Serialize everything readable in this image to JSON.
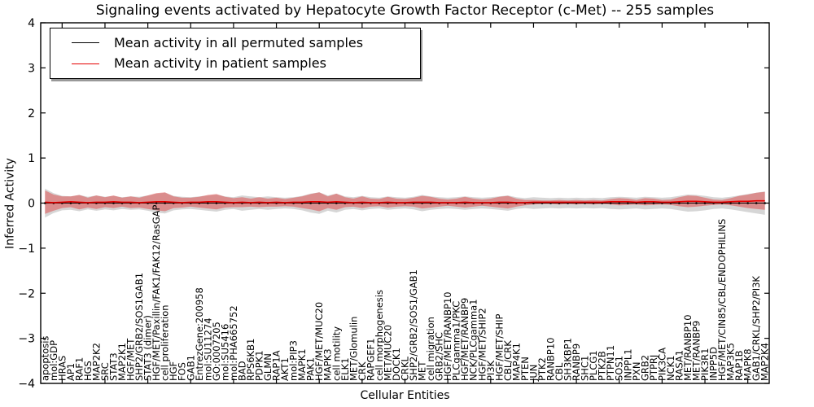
{
  "chart_data": {
    "type": "line",
    "title": "Signaling events activated by Hepatocyte Growth Factor Receptor (c-Met) -- 255 samples",
    "xlabel": "Cellular Entities",
    "ylabel": "Inferred Activity",
    "ylim": [
      -4,
      4
    ],
    "ytick_values": [
      4,
      3,
      2,
      1,
      0,
      -1,
      -2,
      -3,
      -4
    ],
    "ytick_labels": [
      "4",
      "3",
      "2",
      "1",
      "0",
      "−1",
      "−2",
      "−3",
      "−4"
    ],
    "grid": false,
    "legend_position": "upper left",
    "categories": [
      "apoptosis",
      "mol:GDP",
      "HRAS",
      "AP1",
      "RAF1",
      "HGS",
      "MAP2K2",
      "SRC",
      "STAT3",
      "MAP2K1",
      "HGF/MET",
      "SHP2/GRB2/SOS1GAB1",
      "STAT3 (dimer)",
      "HGF/MET/Paxillin/FAK1/FAK12/RasGAP",
      "cell proliferation",
      "HGF",
      "FOS",
      "GAB1",
      "EntrezGene:200958",
      "mol:SU11274",
      "GO:0007205",
      "mol:SU5416",
      "mol:PHA665752",
      "BAD",
      "RPS6KB1",
      "PDPK1",
      "GLMN",
      "RAP1A",
      "AKT1",
      "mol:PIP3",
      "MAPK1",
      "PAK1",
      "HGF/MET/MUC20",
      "MAPK3",
      "cell motility",
      "ELK1",
      "MET/Glomulin",
      "CRK",
      "RAPGEF1",
      "cell morphogenesis",
      "MET/MUC20",
      "DOCK1",
      "CRKL",
      "SHP2/GRB2/SOS1/GAB1",
      "MET",
      "cell migration",
      "GRB2/SHC",
      "HGF/MET/RANBP10",
      "PLCgamma1/PKC",
      "HGF/MET/RANBP9",
      "NCK/PLCgamma1",
      "HGF/MET/SHIP2",
      "PI3K",
      "HGF/MET/SHIP",
      "CBL/CRK",
      "MAP4K1",
      "PTEN",
      "JUN",
      "PTK2",
      "RANBP10",
      "CBL",
      "SH3KBP1",
      "RANBP9",
      "SHC1",
      "PLCG1",
      "PTK2B",
      "PTPN11",
      "SOS1",
      "INPPL1",
      "PXN",
      "GRB2",
      "PTPRJ",
      "PIK3CA",
      "NCK1",
      "RASA1",
      "MET/RANBP10",
      "MET/RANBP9",
      "PIK3R1",
      "INPP5D",
      "HGF/MET/CIN85/CBL/ENDOPHILINS",
      "MAP3K5",
      "RAP1B",
      "MAPK8",
      "GAB1/CRKL/SHP2/PI3K",
      "MAP2K4"
    ],
    "series": [
      {
        "name": "Mean activity in all permuted samples",
        "color": "#000000",
        "line_style": "solid",
        "marker": "point",
        "values": [
          0,
          0,
          0,
          0,
          0,
          0,
          0,
          0,
          0,
          0,
          0,
          0,
          0,
          0,
          0,
          0,
          0,
          0,
          0,
          0,
          0,
          0,
          0,
          0,
          0,
          0,
          0,
          0,
          0,
          0,
          0,
          0,
          0,
          0,
          0,
          0,
          0,
          0,
          0,
          0,
          0,
          0,
          0,
          0,
          0,
          0,
          0,
          0,
          0,
          0,
          0,
          0,
          0,
          0,
          0,
          0,
          0,
          0,
          0,
          0,
          0,
          0,
          0,
          0,
          0,
          0,
          0,
          0,
          0,
          0,
          0,
          0,
          0,
          0,
          0,
          0,
          0,
          0,
          0,
          0,
          0,
          0,
          0,
          0,
          0
        ]
      },
      {
        "name": "Mean activity in patient samples",
        "color": "#e60000",
        "line_style": "solid",
        "marker": "none",
        "values": [
          0.02,
          0.01,
          0.02,
          0.03,
          0.02,
          0.01,
          0.02,
          0.02,
          0.03,
          0.02,
          0.02,
          0.01,
          0.02,
          0.03,
          0.03,
          0.02,
          0.01,
          0.02,
          0.02,
          0.03,
          0.03,
          0.02,
          0.01,
          0.02,
          0.01,
          0.02,
          0.01,
          0.02,
          0.01,
          0.02,
          0.02,
          0.03,
          0.03,
          0.02,
          0.03,
          0.02,
          0.01,
          0.02,
          0.01,
          0.01,
          0.02,
          0.01,
          0.01,
          0.02,
          0.02,
          0.02,
          0.01,
          0.01,
          0.01,
          0.02,
          0.01,
          0.01,
          0.01,
          0.02,
          0.02,
          0.01,
          0.01,
          0.02,
          0.02,
          0.02,
          0.02,
          0.02,
          0.02,
          0.02,
          0.02,
          0.02,
          0.03,
          0.03,
          0.03,
          0.02,
          0.03,
          0.03,
          0.02,
          0.02,
          0.03,
          0.04,
          0.04,
          0.03,
          0.02,
          0.02,
          0.03,
          0.04,
          0.04,
          0.05,
          0.05
        ]
      }
    ],
    "bands": [
      {
        "name": "std of activity in permuted samples",
        "color": "#808080",
        "opacity": 0.32,
        "center_series": 0,
        "half_widths": [
          0.32,
          0.22,
          0.16,
          0.15,
          0.18,
          0.14,
          0.17,
          0.14,
          0.16,
          0.13,
          0.15,
          0.14,
          0.17,
          0.21,
          0.23,
          0.16,
          0.14,
          0.13,
          0.15,
          0.17,
          0.19,
          0.15,
          0.13,
          0.17,
          0.15,
          0.13,
          0.15,
          0.13,
          0.12,
          0.13,
          0.16,
          0.21,
          0.24,
          0.17,
          0.21,
          0.15,
          0.13,
          0.16,
          0.13,
          0.12,
          0.15,
          0.13,
          0.12,
          0.14,
          0.18,
          0.15,
          0.13,
          0.12,
          0.13,
          0.15,
          0.13,
          0.12,
          0.13,
          0.15,
          0.17,
          0.13,
          0.11,
          0.13,
          0.12,
          0.11,
          0.12,
          0.11,
          0.12,
          0.11,
          0.12,
          0.11,
          0.13,
          0.14,
          0.13,
          0.12,
          0.14,
          0.13,
          0.12,
          0.13,
          0.16,
          0.19,
          0.18,
          0.16,
          0.13,
          0.12,
          0.14,
          0.17,
          0.2,
          0.23,
          0.26
        ]
      },
      {
        "name": "std of activity in patient samples",
        "color": "#e02020",
        "opacity": 0.4,
        "center_series": 1,
        "half_widths": [
          0.26,
          0.18,
          0.13,
          0.12,
          0.16,
          0.11,
          0.15,
          0.11,
          0.14,
          0.1,
          0.13,
          0.11,
          0.15,
          0.19,
          0.21,
          0.13,
          0.11,
          0.1,
          0.12,
          0.15,
          0.17,
          0.12,
          0.1,
          0.11,
          0.09,
          0.11,
          0.09,
          0.1,
          0.08,
          0.1,
          0.13,
          0.17,
          0.21,
          0.13,
          0.18,
          0.11,
          0.09,
          0.13,
          0.09,
          0.08,
          0.12,
          0.09,
          0.08,
          0.1,
          0.14,
          0.12,
          0.09,
          0.07,
          0.09,
          0.12,
          0.09,
          0.07,
          0.09,
          0.12,
          0.14,
          0.09,
          0.06,
          0.05,
          0.04,
          0.04,
          0.05,
          0.04,
          0.05,
          0.04,
          0.05,
          0.04,
          0.06,
          0.08,
          0.07,
          0.05,
          0.08,
          0.07,
          0.05,
          0.06,
          0.1,
          0.13,
          0.12,
          0.09,
          0.06,
          0.05,
          0.08,
          0.12,
          0.15,
          0.18,
          0.2
        ]
      }
    ]
  }
}
